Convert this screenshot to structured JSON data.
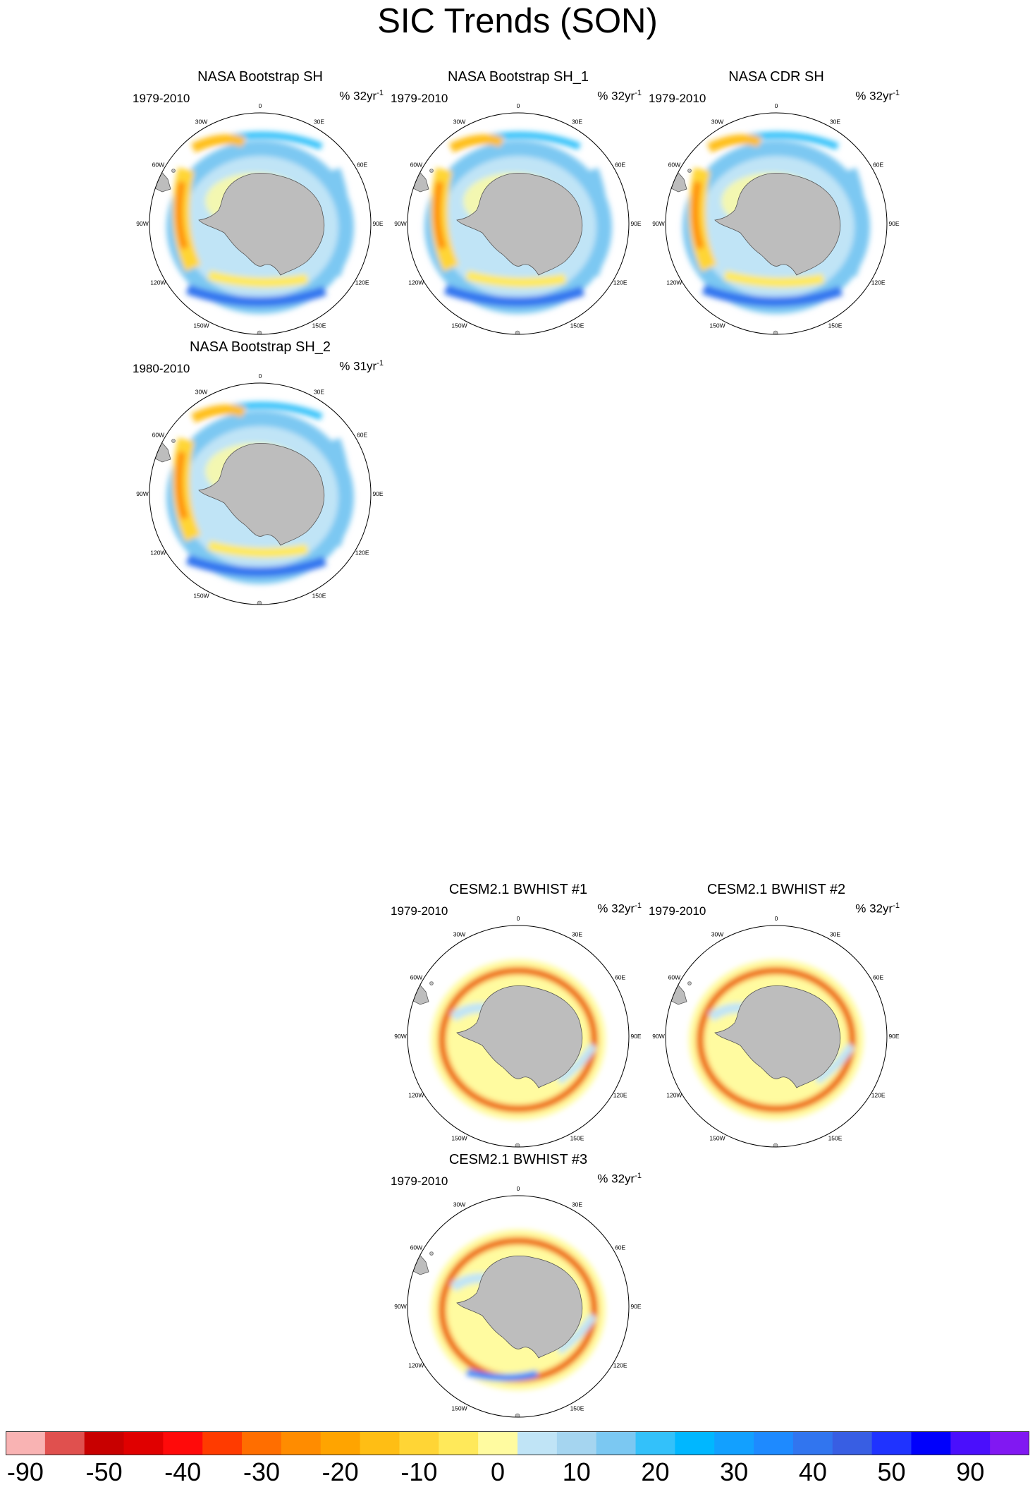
{
  "title": "SIC Trends (SON)",
  "lon_labels": [
    "0",
    "30E",
    "60E",
    "90E",
    "120E",
    "150E",
    "180",
    "150W",
    "120W",
    "90W",
    "60W",
    "30W"
  ],
  "panels": [
    {
      "title": "NASA Bootstrap SH",
      "years": "1979-2010",
      "units": "% 32yr",
      "units_exp": "-1",
      "style": "obs"
    },
    {
      "title": "NASA Bootstrap SH_1",
      "years": "1979-2010",
      "units": "% 32yr",
      "units_exp": "-1",
      "style": "obs"
    },
    {
      "title": "NASA CDR SH",
      "years": "1979-2010",
      "units": "% 32yr",
      "units_exp": "-1",
      "style": "obs"
    },
    {
      "title": "NASA Bootstrap SH_2",
      "years": "1980-2010",
      "units": "% 31yr",
      "units_exp": "-1",
      "style": "obs"
    },
    {
      "title": "CESM2.1 BWHIST #1",
      "years": "1979-2010",
      "units": "% 32yr",
      "units_exp": "-1",
      "style": "model"
    },
    {
      "title": "CESM2.1 BWHIST #2",
      "years": "1979-2010",
      "units": "% 32yr",
      "units_exp": "-1",
      "style": "model"
    },
    {
      "title": "CESM2.1 BWHIST #3",
      "years": "1979-2010",
      "units": "% 32yr",
      "units_exp": "-1",
      "style": "model"
    }
  ],
  "colorbar": {
    "colors": [
      "#f9b3b3",
      "#e0504e",
      "#c80000",
      "#e00000",
      "#ff0a0a",
      "#ff3b00",
      "#ff6e00",
      "#ff8c00",
      "#ffa400",
      "#ffbe14",
      "#ffd535",
      "#ffe95a",
      "#fffba0",
      "#c0e4f6",
      "#a5d5f0",
      "#7bc8f2",
      "#33c1fa",
      "#00b7ff",
      "#12a0ff",
      "#1e8aff",
      "#3175ef",
      "#385ee3",
      "#1f33ff",
      "#0000fc",
      "#4a0ffc",
      "#8118f2"
    ],
    "labels": [
      "-90",
      "-50",
      "-40",
      "-30",
      "-20",
      "-10",
      "0",
      "10",
      "20",
      "30",
      "40",
      "50",
      "90"
    ]
  }
}
